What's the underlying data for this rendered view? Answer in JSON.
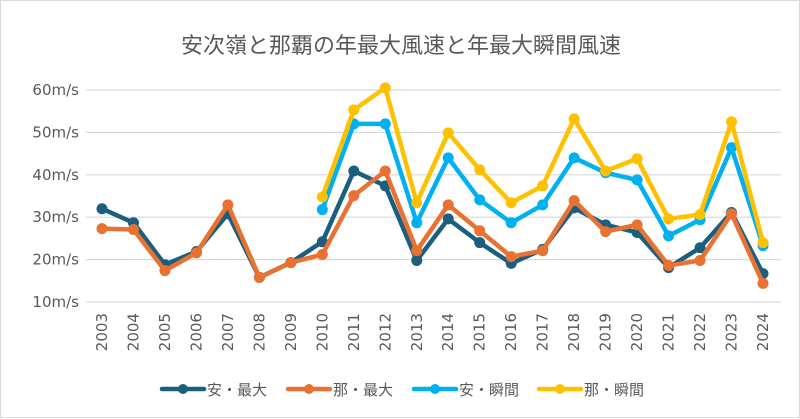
{
  "chart_data": {
    "type": "line",
    "title": "安次嶺と那覇の年最大風速と年最大瞬間風速",
    "xlabel": "",
    "ylabel": "",
    "categories": [
      "2003",
      "2004",
      "2005",
      "2006",
      "2007",
      "2008",
      "2009",
      "2010",
      "2011",
      "2012",
      "2013",
      "2014",
      "2015",
      "2016",
      "2017",
      "2018",
      "2019",
      "2020",
      "2021",
      "2022",
      "2023",
      "2024"
    ],
    "ylim": [
      10,
      60
    ],
    "yticks": [
      10,
      20,
      30,
      40,
      50,
      60
    ],
    "ytick_labels": [
      "10m/s",
      "20m/s",
      "30m/s",
      "40m/s",
      "50m/s",
      "60m/s"
    ],
    "grid": true,
    "legend_position": "bottom",
    "series": [
      {
        "name": "安・最大",
        "color": "#1b5e7e",
        "values": [
          32.0,
          28.7,
          18.8,
          21.9,
          30.8,
          15.8,
          19.3,
          24.2,
          40.9,
          37.4,
          19.8,
          29.6,
          24.0,
          19.1,
          22.4,
          32.2,
          28.2,
          26.4,
          18.1,
          22.8,
          31.1,
          16.7
        ]
      },
      {
        "name": "那・最大",
        "color": "#e97132",
        "values": [
          27.3,
          27.1,
          17.4,
          21.6,
          32.9,
          15.8,
          19.3,
          21.2,
          35.1,
          40.9,
          22.1,
          32.9,
          26.8,
          20.7,
          22.1,
          33.9,
          26.6,
          28.2,
          18.6,
          19.8,
          30.8,
          14.4
        ]
      },
      {
        "name": "安・瞬間",
        "color": "#00b0f0",
        "values": [
          null,
          null,
          null,
          null,
          null,
          null,
          null,
          31.8,
          52.0,
          52.0,
          28.7,
          44.0,
          34.1,
          28.7,
          32.9,
          44.0,
          40.5,
          38.8,
          25.6,
          29.4,
          46.4,
          23.3
        ]
      },
      {
        "name": "那・瞬間",
        "color": "#ffc000",
        "values": [
          null,
          null,
          null,
          null,
          null,
          null,
          null,
          34.8,
          55.3,
          60.5,
          33.4,
          49.9,
          41.2,
          33.4,
          37.4,
          53.2,
          40.9,
          43.8,
          29.6,
          30.6,
          52.5,
          24.0
        ]
      }
    ]
  }
}
